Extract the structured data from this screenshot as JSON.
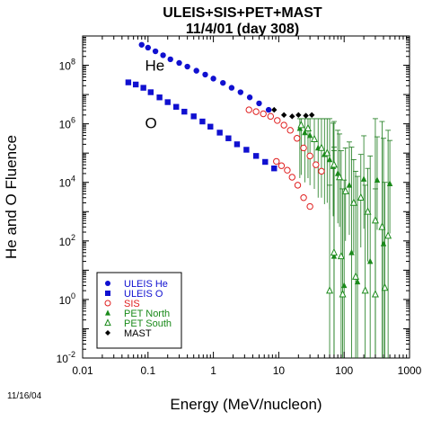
{
  "chart_data": {
    "type": "scatter",
    "title": "ULEIS+SIS+PET+MAST",
    "subtitle": "11/4/01 (day 308)",
    "xlabel": "Energy (MeV/nucleon)",
    "ylabel": "He and O Fluence",
    "x_scale": "log",
    "y_scale": "log",
    "xlim": [
      0.01,
      1000
    ],
    "ylim": [
      0.01,
      1000000000
    ],
    "x_ticks": [
      {
        "value": 0.01,
        "label": "0.01"
      },
      {
        "value": 0.1,
        "label": "0.1"
      },
      {
        "value": 1,
        "label": "1"
      },
      {
        "value": 10,
        "label": "10"
      },
      {
        "value": 100,
        "label": "100"
      },
      {
        "value": 1000,
        "label": "1000"
      }
    ],
    "y_ticks": [
      {
        "value": 0.01,
        "base": "10",
        "exp": "-2"
      },
      {
        "value": 1,
        "base": "10",
        "exp": "0"
      },
      {
        "value": 100,
        "base": "10",
        "exp": "2"
      },
      {
        "value": 10000,
        "base": "10",
        "exp": "4"
      },
      {
        "value": 1000000,
        "base": "10",
        "exp": "6"
      },
      {
        "value": 100000000,
        "base": "10",
        "exp": "8"
      }
    ],
    "grid": false,
    "legend_position": "bottom-left",
    "annotations": [
      {
        "text": "He",
        "x": 0.09,
        "y": 100000000
      },
      {
        "text": "O",
        "x": 0.09,
        "y": 1100000
      }
    ],
    "date_stamp": "11/16/04",
    "series": [
      {
        "name": "ULEIS He",
        "marker": "filled-circle",
        "color": "#1010d0",
        "points": [
          [
            0.08,
            500000000.0
          ],
          [
            0.1,
            400000000.0
          ],
          [
            0.13,
            300000000.0
          ],
          [
            0.17,
            220000000.0
          ],
          [
            0.22,
            160000000.0
          ],
          [
            0.3,
            120000000.0
          ],
          [
            0.4,
            90000000.0
          ],
          [
            0.55,
            65000000.0
          ],
          [
            0.75,
            48000000.0
          ],
          [
            1.0,
            35000000.0
          ],
          [
            1.4,
            25000000.0
          ],
          [
            1.9,
            17000000.0
          ],
          [
            2.6,
            12000000.0
          ],
          [
            3.6,
            8000000.0
          ],
          [
            5.0,
            5000000.0
          ],
          [
            7.0,
            3000000.0
          ]
        ]
      },
      {
        "name": "ULEIS O",
        "marker": "filled-square",
        "color": "#1010d0",
        "points": [
          [
            0.05,
            26000000.0
          ],
          [
            0.065,
            22000000.0
          ],
          [
            0.085,
            17000000.0
          ],
          [
            0.11,
            12000000.0
          ],
          [
            0.15,
            8000000.0
          ],
          [
            0.2,
            5500000.0
          ],
          [
            0.27,
            3800000.0
          ],
          [
            0.36,
            2600000.0
          ],
          [
            0.5,
            1800000.0
          ],
          [
            0.68,
            1200000.0
          ],
          [
            0.9,
            800000.0
          ],
          [
            1.25,
            500000.0
          ],
          [
            1.7,
            320000.0
          ],
          [
            2.3,
            200000.0
          ],
          [
            3.2,
            130000.0
          ],
          [
            4.5,
            80000.0
          ],
          [
            6.2,
            50000.0
          ],
          [
            8.5,
            30000.0
          ]
        ]
      },
      {
        "name": "SIS",
        "marker": "open-circle",
        "color": "#e02020",
        "points": [
          [
            3.5,
            3000000.0
          ],
          [
            4.5,
            2600000.0
          ],
          [
            5.8,
            2200000.0
          ],
          [
            7.5,
            1800000.0
          ],
          [
            9.5,
            1300000.0
          ],
          [
            12,
            900000.0
          ],
          [
            15,
            600000.0
          ],
          [
            19,
            320000.0
          ],
          [
            24,
            150000.0
          ],
          [
            30,
            80000.0
          ],
          [
            37,
            40000.0
          ],
          [
            45,
            24000.0
          ],
          [
            9.2,
            52000.0
          ],
          [
            11,
            37000.0
          ],
          [
            13.5,
            26000.0
          ],
          [
            16,
            15000.0
          ],
          [
            19.5,
            8000.0
          ],
          [
            24,
            3000.0
          ],
          [
            30,
            1500.0
          ]
        ]
      },
      {
        "name": "PET North",
        "marker": "filled-triangle",
        "color": "#1a8a1a",
        "points": [
          [
            21,
            700000.0
          ],
          [
            25,
            500000.0
          ],
          [
            30,
            400000.0
          ],
          [
            40,
            150000.0
          ],
          [
            50,
            90000.0
          ],
          [
            60,
            60000.0
          ],
          [
            68,
            35000.0
          ],
          [
            80,
            20000.0
          ],
          [
            120,
            8000.0
          ],
          [
            200,
            13000.0
          ],
          [
            320,
            12000.0
          ],
          [
            500,
            9000.0
          ],
          [
            70,
            30
          ],
          [
            130,
            40
          ],
          [
            250,
            20
          ],
          [
            400,
            80
          ],
          [
            160,
            4
          ],
          [
            100,
            3
          ]
        ]
      },
      {
        "name": "PET South",
        "marker": "open-triangle",
        "color": "#1a8a1a",
        "points": [
          [
            22,
            900000.0
          ],
          [
            28,
            700000.0
          ],
          [
            35,
            300000.0
          ],
          [
            45,
            150000.0
          ],
          [
            55,
            100000.0
          ],
          [
            70,
            40000.0
          ],
          [
            85,
            15000.0
          ],
          [
            105,
            5000.0
          ],
          [
            140,
            2000.0
          ],
          [
            180,
            3000.0
          ],
          [
            230,
            1000.0
          ],
          [
            300,
            500
          ],
          [
            380,
            300
          ],
          [
            470,
            150
          ],
          [
            70,
            40
          ],
          [
            90,
            30
          ],
          [
            150,
            6
          ],
          [
            210,
            2
          ],
          [
            300,
            1.5
          ],
          [
            95,
            1.5
          ],
          [
            60,
            2
          ],
          [
            420,
            2.5
          ]
        ]
      },
      {
        "name": "MAST",
        "marker": "filled-diamond",
        "color": "#000000",
        "points": [
          [
            8.5,
            3000000.0
          ],
          [
            12,
            2000000.0
          ],
          [
            16,
            1800000.0
          ],
          [
            20,
            2000000.0
          ],
          [
            26,
            1900000.0
          ],
          [
            32,
            2000000.0
          ]
        ]
      }
    ]
  },
  "legend_entries": [
    {
      "name": "ULEIS He",
      "marker": "filled-circle",
      "color": "#1010d0"
    },
    {
      "name": "ULEIS O",
      "marker": "filled-square",
      "color": "#1010d0"
    },
    {
      "name": "SIS",
      "marker": "open-circle",
      "color": "#e02020"
    },
    {
      "name": "PET North",
      "marker": "filled-triangle",
      "color": "#1a8a1a"
    },
    {
      "name": "PET South",
      "marker": "open-triangle",
      "color": "#1a8a1a"
    },
    {
      "name": "MAST",
      "marker": "filled-diamond",
      "color": "#000000"
    }
  ]
}
